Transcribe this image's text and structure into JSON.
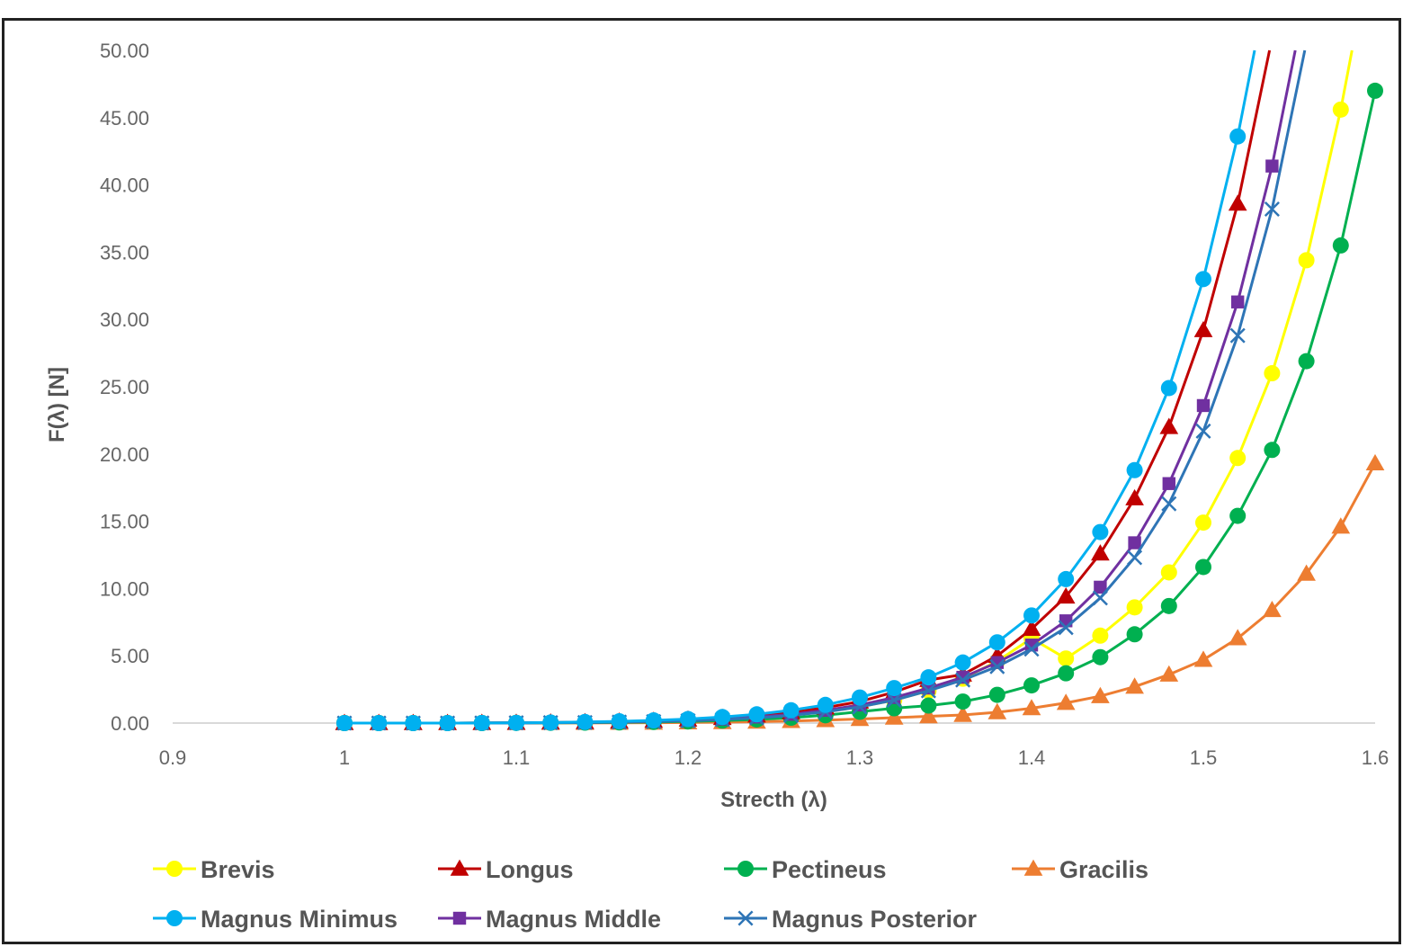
{
  "chart_data": {
    "type": "line",
    "title": "",
    "xlabel": "Strecth (λ)",
    "ylabel": "F(λ)  [N]",
    "xlim": [
      0.9,
      1.6
    ],
    "ylim": [
      0,
      50
    ],
    "x_ticks": [
      "0.9",
      "1",
      "1.1",
      "1.2",
      "1.3",
      "1.4",
      "1.5",
      "1.6"
    ],
    "y_ticks": [
      "0.00",
      "5.00",
      "10.00",
      "15.00",
      "20.00",
      "25.00",
      "30.00",
      "35.00",
      "40.00",
      "45.00",
      "50.00"
    ],
    "grid": false,
    "legend_position": "bottom",
    "x": [
      1.0,
      1.02,
      1.04,
      1.06,
      1.08,
      1.1,
      1.12,
      1.14,
      1.16,
      1.18,
      1.2,
      1.22,
      1.24,
      1.26,
      1.28,
      1.3,
      1.32,
      1.34,
      1.36,
      1.38,
      1.4,
      1.42,
      1.44,
      1.46,
      1.48,
      1.5,
      1.52,
      1.54,
      1.56,
      1.58,
      1.6
    ],
    "series": [
      {
        "name": "Brevis",
        "color": "#ffff00",
        "marker": "circle",
        "values": [
          0,
          0,
          0,
          0,
          0.01,
          0.02,
          0.03,
          0.05,
          0.08,
          0.12,
          0.18,
          0.27,
          0.4,
          0.58,
          0.84,
          1.2,
          1.7,
          2.4,
          3.3,
          4.6,
          6.3,
          4.8,
          6.5,
          8.6,
          11.2,
          14.9,
          19.7,
          26.0,
          34.4,
          45.6,
          null
        ]
      },
      {
        "name": "Longus",
        "color": "#c00000",
        "marker": "triangle",
        "values": [
          0,
          0,
          0,
          0,
          0.01,
          0.02,
          0.04,
          0.07,
          0.11,
          0.17,
          0.26,
          0.38,
          0.56,
          0.8,
          1.15,
          1.6,
          2.3,
          3.2,
          3.6,
          5.0,
          7.0,
          9.4,
          12.6,
          16.7,
          22.0,
          29.2,
          38.6,
          null,
          null,
          null,
          null
        ]
      },
      {
        "name": "Pectineus",
        "color": "#00b050",
        "marker": "circle",
        "values": [
          0,
          0,
          0,
          0,
          0,
          0.01,
          0.02,
          0.03,
          0.05,
          0.08,
          0.12,
          0.18,
          0.27,
          0.4,
          0.58,
          0.84,
          1.1,
          1.3,
          1.6,
          2.1,
          2.8,
          3.7,
          4.9,
          6.6,
          8.7,
          11.6,
          15.4,
          20.3,
          26.9,
          35.5,
          47.0
        ]
      },
      {
        "name": "Gracilis",
        "color": "#ed7d31",
        "marker": "triangle",
        "values": [
          0,
          0,
          0,
          0,
          0,
          0,
          0.01,
          0.01,
          0.02,
          0.03,
          0.05,
          0.07,
          0.1,
          0.15,
          0.22,
          0.3,
          0.4,
          0.5,
          0.6,
          0.8,
          1.1,
          1.5,
          2.0,
          2.7,
          3.6,
          4.7,
          6.3,
          8.4,
          11.1,
          14.6,
          19.3
        ]
      },
      {
        "name": "Magnus Minimus",
        "color": "#00b0f0",
        "marker": "circle",
        "values": [
          0,
          0,
          0,
          0,
          0.01,
          0.02,
          0.04,
          0.08,
          0.13,
          0.2,
          0.3,
          0.45,
          0.65,
          0.95,
          1.35,
          1.9,
          2.6,
          3.4,
          4.5,
          6.0,
          8.0,
          10.7,
          14.2,
          18.8,
          24.9,
          33.0,
          43.6,
          null,
          null,
          null,
          null
        ]
      },
      {
        "name": "Magnus Middle",
        "color": "#7030a0",
        "marker": "square",
        "values": [
          0,
          0,
          0,
          0,
          0.01,
          0.02,
          0.03,
          0.05,
          0.08,
          0.13,
          0.2,
          0.3,
          0.45,
          0.65,
          0.95,
          1.35,
          1.9,
          2.6,
          3.4,
          4.5,
          5.8,
          7.6,
          10.1,
          13.4,
          17.8,
          23.6,
          31.3,
          41.4,
          null,
          null,
          null
        ]
      },
      {
        "name": "Magnus Posterior",
        "color": "#2e75b6",
        "marker": "x",
        "values": [
          0,
          0,
          0,
          0,
          0.01,
          0.02,
          0.03,
          0.04,
          0.07,
          0.11,
          0.17,
          0.26,
          0.39,
          0.57,
          0.83,
          1.2,
          1.7,
          2.4,
          3.2,
          4.2,
          5.5,
          7.1,
          9.3,
          12.3,
          16.3,
          21.7,
          28.8,
          38.2,
          null,
          null,
          null
        ]
      }
    ]
  }
}
